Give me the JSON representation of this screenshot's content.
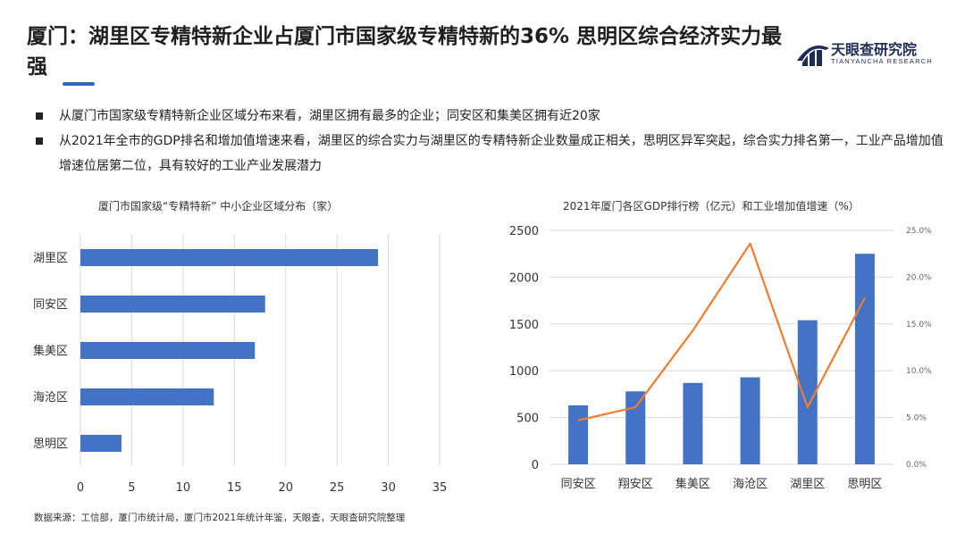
{
  "header": {
    "title": "厦门：湖里区专精特新企业占厦门市国家级专精特新的36% 思明区综合经济实力最强",
    "logo_name": "天眼查研究院",
    "logo_sub": "TIANYANCHA RESEARCH"
  },
  "bullets": [
    "从厦门市国家级专精特新企业区域分布来看，湖里区拥有最多的企业；同安区和集美区拥有近20家",
    "从2021年全市的GDP排名和增加值增速来看，湖里区的综合实力与湖里区的专精特新企业数量成正相关，思明区异军突起，综合实力排名第一，工业产品增加值增速位居第二位，具有较好的工业产业发展潜力"
  ],
  "colors": {
    "bar": "#4472c4",
    "line": "#ed7d31",
    "grid": "#d9d9d9",
    "accent": "#2f64c4"
  },
  "chart_data": [
    {
      "type": "bar",
      "orientation": "horizontal",
      "title": "厦门市国家级“专精特新” 中小企业区域分布（家）",
      "categories": [
        "湖里区",
        "同安区",
        "集美区",
        "海沧区",
        "思明区"
      ],
      "values": [
        29,
        18,
        17,
        13,
        4
      ],
      "xlim": [
        0,
        35
      ],
      "xticks": [
        "0",
        "5",
        "10",
        "15",
        "20",
        "25",
        "30",
        "35"
      ],
      "grid": "vertical"
    },
    {
      "type": "bar+line",
      "title": "2021年厦门各区GDP排行榜（亿元）和工业增加值增速（%）",
      "categories": [
        "同安区",
        "翔安区",
        "集美区",
        "海沧区",
        "湖里区",
        "思明区"
      ],
      "bar_values": [
        630,
        780,
        870,
        930,
        1540,
        2250
      ],
      "line_values": [
        4.7,
        6.1,
        14.3,
        23.6,
        6.1,
        17.8
      ],
      "ylim_left": [
        0,
        2500
      ],
      "yticks_left": [
        "0",
        "500",
        "1000",
        "1500",
        "2000",
        "2500"
      ],
      "ylim_right": [
        0,
        25
      ],
      "yticks_right": [
        "0.0%",
        "5.0%",
        "10.0%",
        "15.0%",
        "20.0%",
        "25.0%"
      ],
      "grid": "horizontal"
    }
  ],
  "source": "数据来源：工信部，厦门市统计局，厦门市2021年统计年鉴，天眼查，天眼查研究院整理"
}
